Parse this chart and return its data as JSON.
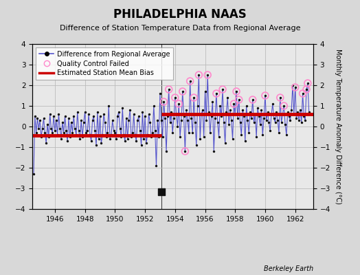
{
  "title": "PHILADELPHIA NAAS",
  "subtitle": "Difference of Station Temperature Data from Regional Average",
  "ylabel": "Monthly Temperature Anomaly Difference (°C)",
  "credit": "Berkeley Earth",
  "xlim": [
    1944.5,
    1963.2
  ],
  "ylim": [
    -4,
    4
  ],
  "yticks": [
    -4,
    -3,
    -2,
    -1,
    0,
    1,
    2,
    3,
    4
  ],
  "xticks": [
    1946,
    1948,
    1950,
    1952,
    1954,
    1956,
    1958,
    1960,
    1962
  ],
  "break_x": 1953.08,
  "bias_before_y": -0.42,
  "bias_after_y": 0.6,
  "empirical_break_x": 1953.08,
  "empirical_break_y": -3.15,
  "bg_color": "#d8d8d8",
  "plot_bg_color": "#e8e8e8",
  "line_color": "#5555cc",
  "dot_color": "#111111",
  "red_color": "#cc0000",
  "qc_color": "#ff88cc",
  "title_fontsize": 12,
  "subtitle_fontsize": 8,
  "data": [
    [
      1944.583,
      -2.3
    ],
    [
      1944.667,
      0.5
    ],
    [
      1944.75,
      -0.3
    ],
    [
      1944.833,
      0.4
    ],
    [
      1944.917,
      -0.1
    ],
    [
      1945.0,
      0.3
    ],
    [
      1945.083,
      -0.5
    ],
    [
      1945.167,
      -0.1
    ],
    [
      1945.25,
      0.4
    ],
    [
      1945.333,
      -0.3
    ],
    [
      1945.417,
      -0.8
    ],
    [
      1945.5,
      0.1
    ],
    [
      1945.583,
      -0.5
    ],
    [
      1945.667,
      0.6
    ],
    [
      1945.75,
      -0.1
    ],
    [
      1945.833,
      -0.3
    ],
    [
      1945.917,
      0.5
    ],
    [
      1946.0,
      -0.2
    ],
    [
      1946.083,
      0.3
    ],
    [
      1946.167,
      -0.4
    ],
    [
      1946.25,
      0.6
    ],
    [
      1946.333,
      -0.1
    ],
    [
      1946.417,
      -0.6
    ],
    [
      1946.5,
      0.2
    ],
    [
      1946.583,
      -0.3
    ],
    [
      1946.667,
      0.5
    ],
    [
      1946.75,
      -0.2
    ],
    [
      1946.833,
      -0.7
    ],
    [
      1946.917,
      0.4
    ],
    [
      1947.0,
      -0.5
    ],
    [
      1947.083,
      0.2
    ],
    [
      1947.167,
      -0.3
    ],
    [
      1947.25,
      0.5
    ],
    [
      1947.333,
      -0.1
    ],
    [
      1947.417,
      -0.4
    ],
    [
      1947.5,
      0.7
    ],
    [
      1947.583,
      -0.2
    ],
    [
      1947.667,
      -0.6
    ],
    [
      1947.75,
      0.3
    ],
    [
      1947.833,
      -0.5
    ],
    [
      1947.917,
      0.2
    ],
    [
      1948.0,
      0.7
    ],
    [
      1948.083,
      -0.3
    ],
    [
      1948.167,
      -0.2
    ],
    [
      1948.25,
      0.6
    ],
    [
      1948.333,
      -0.4
    ],
    [
      1948.417,
      -0.7
    ],
    [
      1948.5,
      0.3
    ],
    [
      1948.583,
      0.5
    ],
    [
      1948.667,
      -0.2
    ],
    [
      1948.75,
      -0.9
    ],
    [
      1948.833,
      0.7
    ],
    [
      1948.917,
      -0.6
    ],
    [
      1949.0,
      0.5
    ],
    [
      1949.083,
      -0.8
    ],
    [
      1949.167,
      -0.4
    ],
    [
      1949.25,
      0.6
    ],
    [
      1949.333,
      0.2
    ],
    [
      1949.417,
      -0.5
    ],
    [
      1949.5,
      -0.3
    ],
    [
      1949.583,
      1.0
    ],
    [
      1949.667,
      -0.6
    ],
    [
      1949.75,
      -0.4
    ],
    [
      1949.833,
      0.3
    ],
    [
      1949.917,
      -0.2
    ],
    [
      1950.0,
      -0.3
    ],
    [
      1950.083,
      -0.6
    ],
    [
      1950.167,
      0.5
    ],
    [
      1950.25,
      0.7
    ],
    [
      1950.333,
      -0.1
    ],
    [
      1950.417,
      -0.5
    ],
    [
      1950.5,
      0.9
    ],
    [
      1950.583,
      -0.4
    ],
    [
      1950.667,
      -0.7
    ],
    [
      1950.75,
      0.4
    ],
    [
      1950.833,
      -0.6
    ],
    [
      1950.917,
      0.3
    ],
    [
      1951.0,
      0.8
    ],
    [
      1951.083,
      -0.5
    ],
    [
      1951.167,
      -0.3
    ],
    [
      1951.25,
      0.6
    ],
    [
      1951.333,
      -0.4
    ],
    [
      1951.417,
      -0.7
    ],
    [
      1951.5,
      0.3
    ],
    [
      1951.583,
      0.5
    ],
    [
      1951.667,
      -0.2
    ],
    [
      1951.75,
      -0.9
    ],
    [
      1951.833,
      0.7
    ],
    [
      1951.917,
      -0.6
    ],
    [
      1952.0,
      0.5
    ],
    [
      1952.083,
      -0.8
    ],
    [
      1952.167,
      -0.4
    ],
    [
      1952.25,
      0.6
    ],
    [
      1952.333,
      0.2
    ],
    [
      1952.417,
      -0.5
    ],
    [
      1952.5,
      -0.3
    ],
    [
      1952.583,
      1.0
    ],
    [
      1952.667,
      -0.2
    ],
    [
      1952.75,
      -1.9
    ],
    [
      1952.833,
      0.3
    ],
    [
      1952.917,
      -0.5
    ],
    [
      1953.0,
      1.6
    ],
    [
      1953.083,
      0.3
    ],
    [
      1953.167,
      -0.5
    ],
    [
      1953.25,
      1.2
    ],
    [
      1953.333,
      0.4
    ],
    [
      1953.417,
      -1.2
    ],
    [
      1953.5,
      0.5
    ],
    [
      1953.583,
      1.8
    ],
    [
      1953.667,
      0.2
    ],
    [
      1953.75,
      0.7
    ],
    [
      1953.833,
      -0.3
    ],
    [
      1953.917,
      0.4
    ],
    [
      1954.0,
      1.4
    ],
    [
      1954.083,
      0.6
    ],
    [
      1954.167,
      0.0
    ],
    [
      1954.25,
      1.1
    ],
    [
      1954.333,
      -0.5
    ],
    [
      1954.417,
      0.3
    ],
    [
      1954.5,
      1.7
    ],
    [
      1954.583,
      0.5
    ],
    [
      1954.667,
      -1.2
    ],
    [
      1954.75,
      0.8
    ],
    [
      1954.833,
      0.3
    ],
    [
      1954.917,
      -0.3
    ],
    [
      1955.0,
      2.2
    ],
    [
      1955.083,
      0.4
    ],
    [
      1955.167,
      -0.3
    ],
    [
      1955.25,
      1.4
    ],
    [
      1955.333,
      0.2
    ],
    [
      1955.417,
      -0.9
    ],
    [
      1955.5,
      1.0
    ],
    [
      1955.583,
      2.5
    ],
    [
      1955.667,
      -0.6
    ],
    [
      1955.75,
      0.6
    ],
    [
      1955.833,
      0.8
    ],
    [
      1955.917,
      -0.5
    ],
    [
      1956.0,
      1.7
    ],
    [
      1956.083,
      0.3
    ],
    [
      1956.167,
      2.5
    ],
    [
      1956.25,
      0.7
    ],
    [
      1956.333,
      -0.3
    ],
    [
      1956.417,
      0.5
    ],
    [
      1956.5,
      1.2
    ],
    [
      1956.583,
      -1.2
    ],
    [
      1956.667,
      0.4
    ],
    [
      1956.75,
      1.6
    ],
    [
      1956.833,
      0.2
    ],
    [
      1956.917,
      -0.5
    ],
    [
      1957.0,
      1.0
    ],
    [
      1957.083,
      0.5
    ],
    [
      1957.167,
      1.8
    ],
    [
      1957.25,
      0.2
    ],
    [
      1957.333,
      -0.8
    ],
    [
      1957.417,
      0.7
    ],
    [
      1957.5,
      1.4
    ],
    [
      1957.583,
      0.1
    ],
    [
      1957.667,
      0.8
    ],
    [
      1957.75,
      0.3
    ],
    [
      1957.833,
      -0.6
    ],
    [
      1957.917,
      1.1
    ],
    [
      1958.0,
      0.6
    ],
    [
      1958.083,
      1.7
    ],
    [
      1958.167,
      0.4
    ],
    [
      1958.25,
      1.3
    ],
    [
      1958.333,
      0.2
    ],
    [
      1958.417,
      -0.4
    ],
    [
      1958.5,
      0.8
    ],
    [
      1958.583,
      0.5
    ],
    [
      1958.667,
      -0.7
    ],
    [
      1958.75,
      1.0
    ],
    [
      1958.833,
      0.3
    ],
    [
      1958.917,
      -0.3
    ],
    [
      1959.0,
      0.7
    ],
    [
      1959.083,
      0.4
    ],
    [
      1959.167,
      1.3
    ],
    [
      1959.25,
      0.2
    ],
    [
      1959.333,
      0.6
    ],
    [
      1959.417,
      -0.5
    ],
    [
      1959.5,
      0.9
    ],
    [
      1959.583,
      0.5
    ],
    [
      1959.667,
      0.1
    ],
    [
      1959.75,
      0.8
    ],
    [
      1959.833,
      -0.4
    ],
    [
      1959.917,
      0.4
    ],
    [
      1960.0,
      1.5
    ],
    [
      1960.083,
      0.3
    ],
    [
      1960.167,
      0.7
    ],
    [
      1960.25,
      0.2
    ],
    [
      1960.333,
      -0.2
    ],
    [
      1960.417,
      0.6
    ],
    [
      1960.5,
      1.1
    ],
    [
      1960.583,
      0.4
    ],
    [
      1960.667,
      0.2
    ],
    [
      1960.75,
      0.7
    ],
    [
      1960.833,
      0.3
    ],
    [
      1960.917,
      -0.3
    ],
    [
      1961.0,
      1.4
    ],
    [
      1961.083,
      0.2
    ],
    [
      1961.167,
      0.6
    ],
    [
      1961.25,
      1.0
    ],
    [
      1961.333,
      0.1
    ],
    [
      1961.417,
      -0.4
    ],
    [
      1961.5,
      0.7
    ],
    [
      1961.583,
      0.5
    ],
    [
      1961.667,
      0.3
    ],
    [
      1961.75,
      0.8
    ],
    [
      1961.833,
      2.0
    ],
    [
      1961.917,
      0.6
    ],
    [
      1962.0,
      1.9
    ],
    [
      1962.083,
      0.4
    ],
    [
      1962.167,
      0.7
    ],
    [
      1962.25,
      0.3
    ],
    [
      1962.333,
      0.8
    ],
    [
      1962.417,
      0.2
    ],
    [
      1962.5,
      1.6
    ],
    [
      1962.583,
      0.5
    ],
    [
      1962.667,
      0.3
    ],
    [
      1962.75,
      1.8
    ],
    [
      1962.833,
      2.1
    ],
    [
      1962.917,
      0.7
    ]
  ],
  "qc_failed_points": [
    [
      1953.25,
      1.2
    ],
    [
      1953.583,
      1.8
    ],
    [
      1954.0,
      1.4
    ],
    [
      1954.25,
      1.1
    ],
    [
      1954.5,
      1.7
    ],
    [
      1954.667,
      -1.2
    ],
    [
      1955.0,
      2.2
    ],
    [
      1955.25,
      1.4
    ],
    [
      1955.583,
      2.5
    ],
    [
      1956.167,
      2.5
    ],
    [
      1956.75,
      1.6
    ],
    [
      1957.167,
      1.8
    ],
    [
      1957.917,
      1.1
    ],
    [
      1958.083,
      1.7
    ],
    [
      1958.25,
      1.3
    ],
    [
      1959.167,
      1.3
    ],
    [
      1960.0,
      1.5
    ],
    [
      1961.0,
      1.4
    ],
    [
      1961.25,
      1.0
    ],
    [
      1962.0,
      1.9
    ],
    [
      1962.5,
      1.6
    ],
    [
      1962.75,
      1.8
    ],
    [
      1962.833,
      2.1
    ]
  ]
}
